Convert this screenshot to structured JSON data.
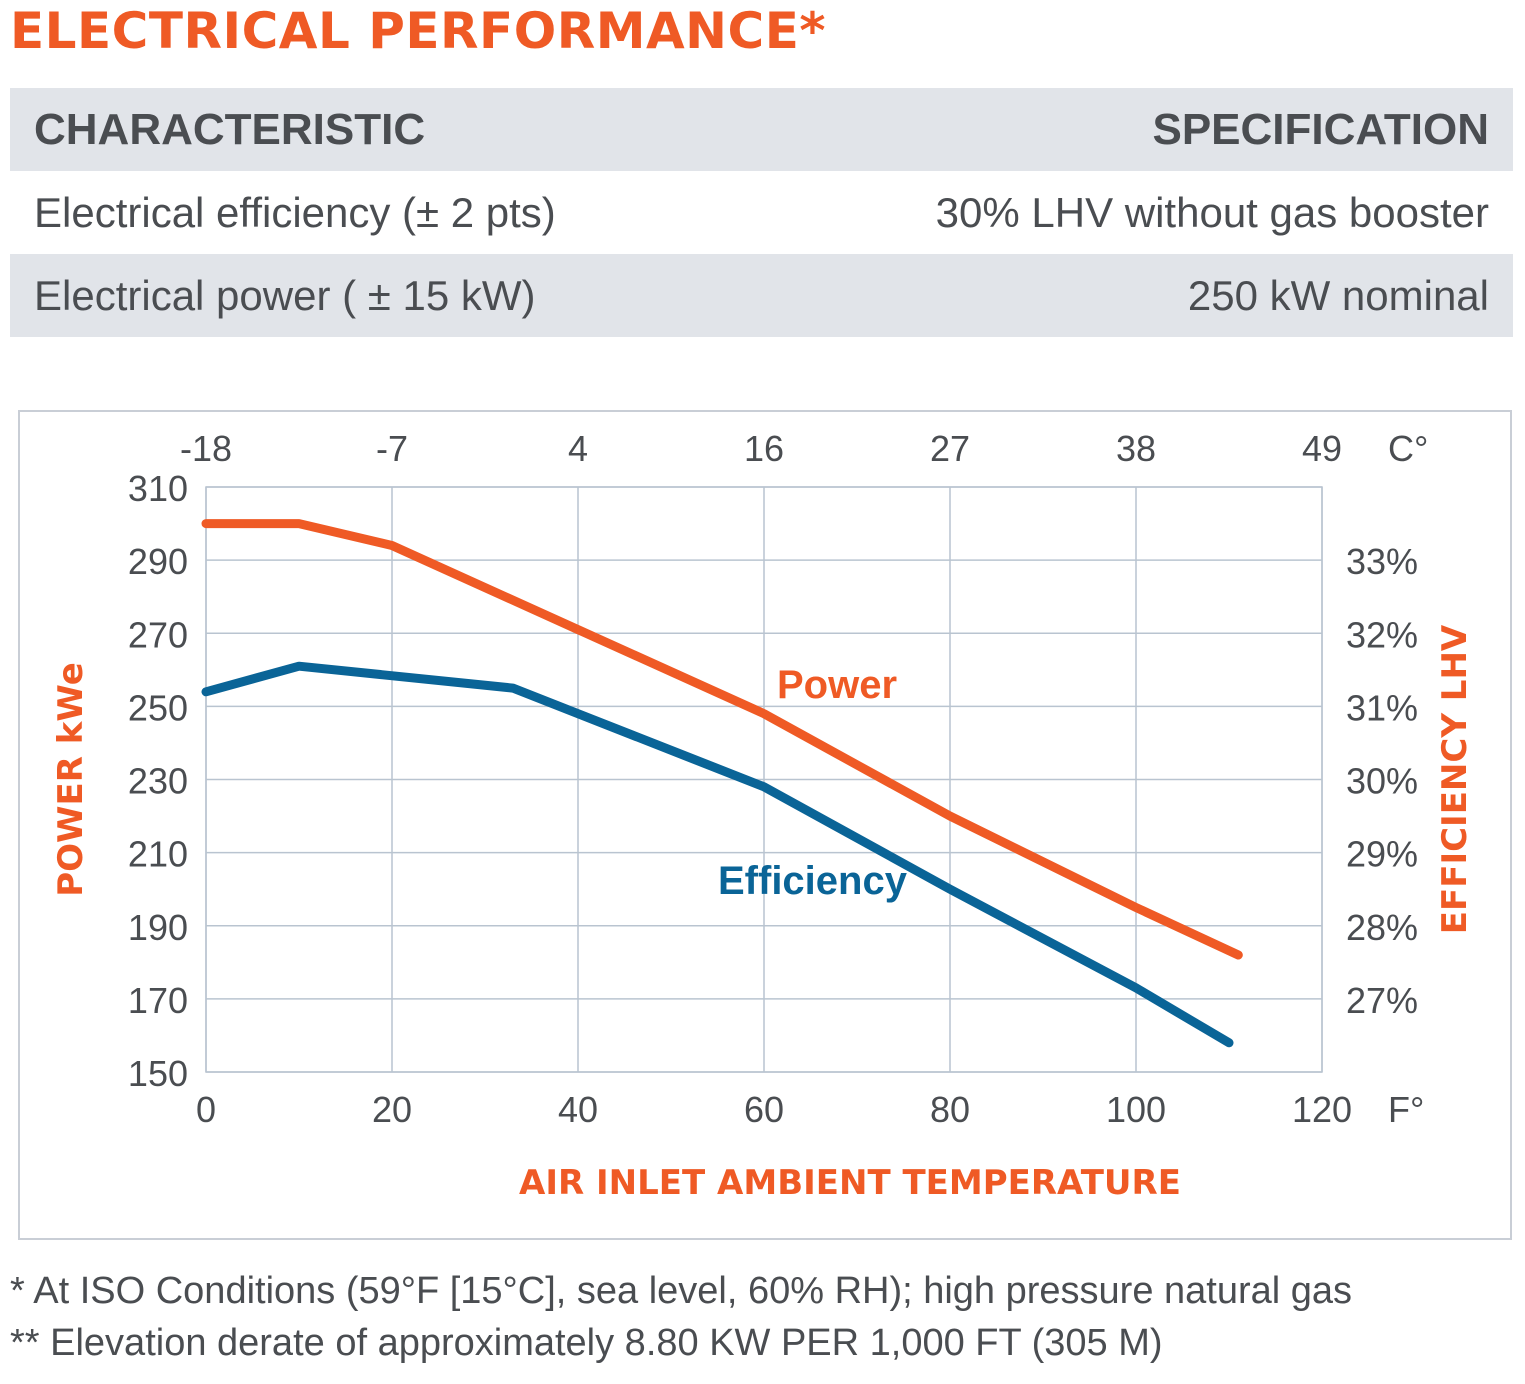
{
  "title": "ELECTRICAL PERFORMANCE*",
  "table": {
    "header": [
      "CHARACTERISTIC",
      "SPECIFICATION"
    ],
    "rows": [
      [
        "Electrical efficiency (± 2 pts)",
        "30% LHV without gas booster"
      ],
      [
        "Electrical power ( ± 15 kW)",
        "250 kW nominal"
      ]
    ]
  },
  "colors": {
    "accent": "#ef5a25",
    "efficiency": "#0a6497",
    "grid": "#b9c4d0",
    "text": "#4a4d51"
  },
  "chart_data": {
    "type": "line",
    "xlabel": "AIR INLET AMBIENT TEMPERATURE",
    "ylabel": "POWER kWe",
    "y2label": "EFFICIENCY LHV",
    "xlim": [
      0,
      120
    ],
    "ylim": [
      150,
      310
    ],
    "x_ticks": [
      0,
      20,
      40,
      60,
      80,
      100,
      120
    ],
    "x_tick_labels": [
      "0",
      "20",
      "40",
      "60",
      "80",
      "100",
      "120"
    ],
    "x_unit": "F°",
    "x2_tick_labels": [
      "-18",
      "-7",
      "4",
      "16",
      "27",
      "38",
      "49"
    ],
    "x2_unit": "C°",
    "y_ticks": [
      150,
      170,
      190,
      210,
      230,
      250,
      270,
      290,
      310
    ],
    "y_tick_labels": [
      "150",
      "170",
      "190",
      "210",
      "230",
      "250",
      "270",
      "290",
      "310"
    ],
    "y2_tick_labels": [
      "27%",
      "28%",
      "29%",
      "30%",
      "31%",
      "32%",
      "33%"
    ],
    "y2_tick_positions": [
      170,
      190,
      210,
      230,
      250,
      270,
      290
    ],
    "grid": true,
    "series": [
      {
        "name": "Power",
        "label": "Power",
        "color": "#ef5a25",
        "x": [
          0,
          10,
          20,
          40,
          60,
          80,
          100,
          111
        ],
        "y": [
          300,
          300,
          294,
          271,
          248,
          220,
          195,
          182
        ]
      },
      {
        "name": "Efficiency",
        "label": "Efficiency",
        "color": "#0a6497",
        "x": [
          0,
          10,
          33,
          40,
          60,
          80,
          100,
          110
        ],
        "y": [
          254,
          261,
          255,
          248,
          228,
          200,
          173,
          158
        ]
      }
    ]
  },
  "footnotes": [
    "* At ISO Conditions (59°F [15°C], sea level, 60% RH); high pressure natural gas",
    "** Elevation derate of approximately 8.80 KW PER 1,000 FT (305 M)"
  ]
}
